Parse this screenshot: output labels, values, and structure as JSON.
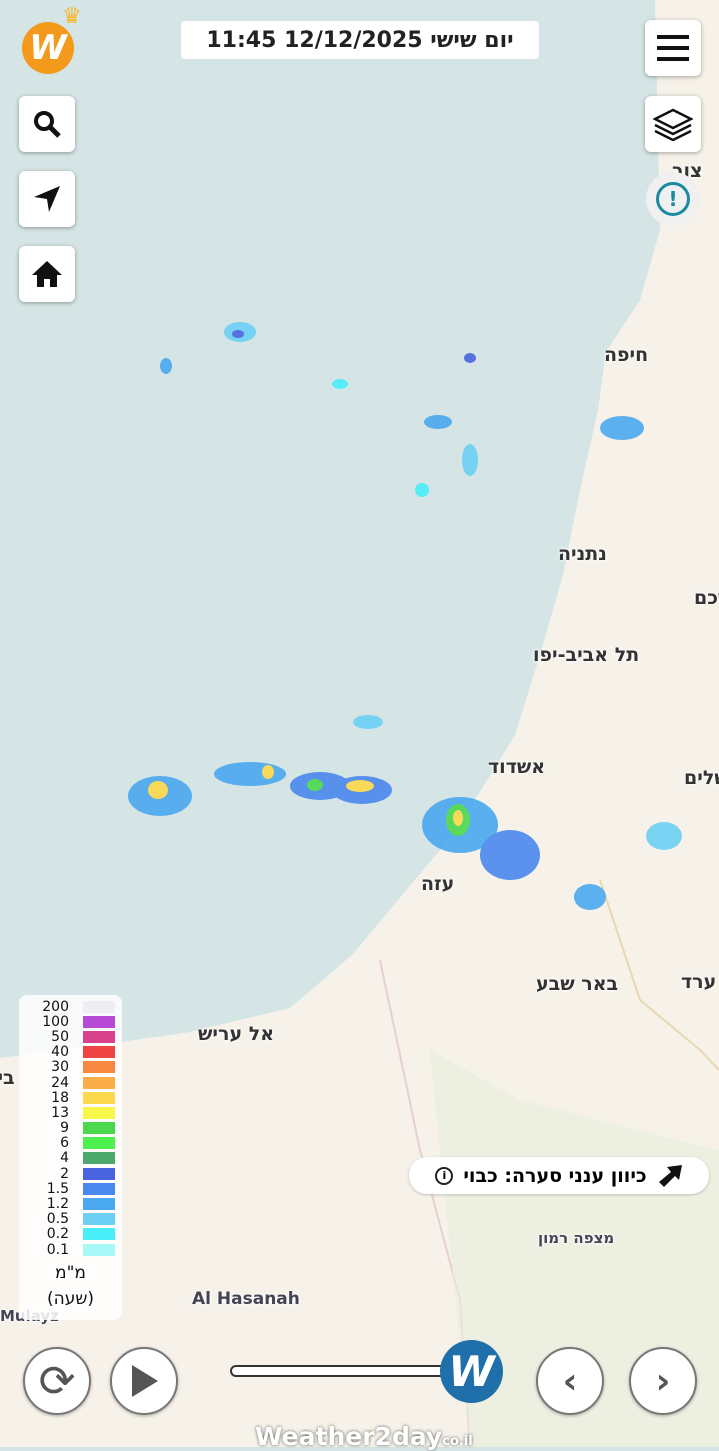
{
  "header": {
    "datetime": "יום שישי 12/12/2025 11:45"
  },
  "buttons": {
    "menu": "menu-icon",
    "layers": "layers-icon",
    "search": "search-icon",
    "locate": "navigation-arrow-icon",
    "home": "home-icon",
    "alert": "exclamation-icon"
  },
  "cities": [
    {
      "name": "צור"
    },
    {
      "name": "חיפה"
    },
    {
      "name": "נתניה"
    },
    {
      "name": "שכם"
    },
    {
      "name": "תל אביב-יפו"
    },
    {
      "name": "אשדוד"
    },
    {
      "name": "ירושלים"
    },
    {
      "name": "עזה"
    },
    {
      "name": "באר שבע"
    },
    {
      "name": "ערד"
    },
    {
      "name": "אל עריש"
    },
    {
      "name": "ביר"
    },
    {
      "name": "מצפה רמון"
    },
    {
      "name": "Al Hasanah"
    },
    {
      "name": "Mulayz"
    }
  ],
  "legend": {
    "rows": [
      {
        "value": "200",
        "color": "#eeeef2"
      },
      {
        "value": "100",
        "color": "#b84ad8"
      },
      {
        "value": "50",
        "color": "#d8428a"
      },
      {
        "value": "40",
        "color": "#ee4444"
      },
      {
        "value": "30",
        "color": "#f78a40"
      },
      {
        "value": "24",
        "color": "#fbae48"
      },
      {
        "value": "18",
        "color": "#fcd84c"
      },
      {
        "value": "13",
        "color": "#f8f84a"
      },
      {
        "value": "9",
        "color": "#4cd84c"
      },
      {
        "value": "6",
        "color": "#4ef04e"
      },
      {
        "value": "4",
        "color": "#4aa86a"
      },
      {
        "value": "2",
        "color": "#4a64e0"
      },
      {
        "value": "1.5",
        "color": "#4a88ee"
      },
      {
        "value": "1.2",
        "color": "#4aa8f0"
      },
      {
        "value": "0.5",
        "color": "#6cd0f4"
      },
      {
        "value": "0.2",
        "color": "#48eef8"
      },
      {
        "value": "0.1",
        "color": "#a8f8f8"
      }
    ],
    "unit": "מ\"מ",
    "unit2": "(שעה)"
  },
  "storm_direction": {
    "label": "כיוון ענני סערה: כבוי"
  },
  "controls": {
    "progress": 1.0
  },
  "brand": {
    "text": "Weather2day",
    "suffix": "co.il",
    "color": "#1f6fab"
  }
}
